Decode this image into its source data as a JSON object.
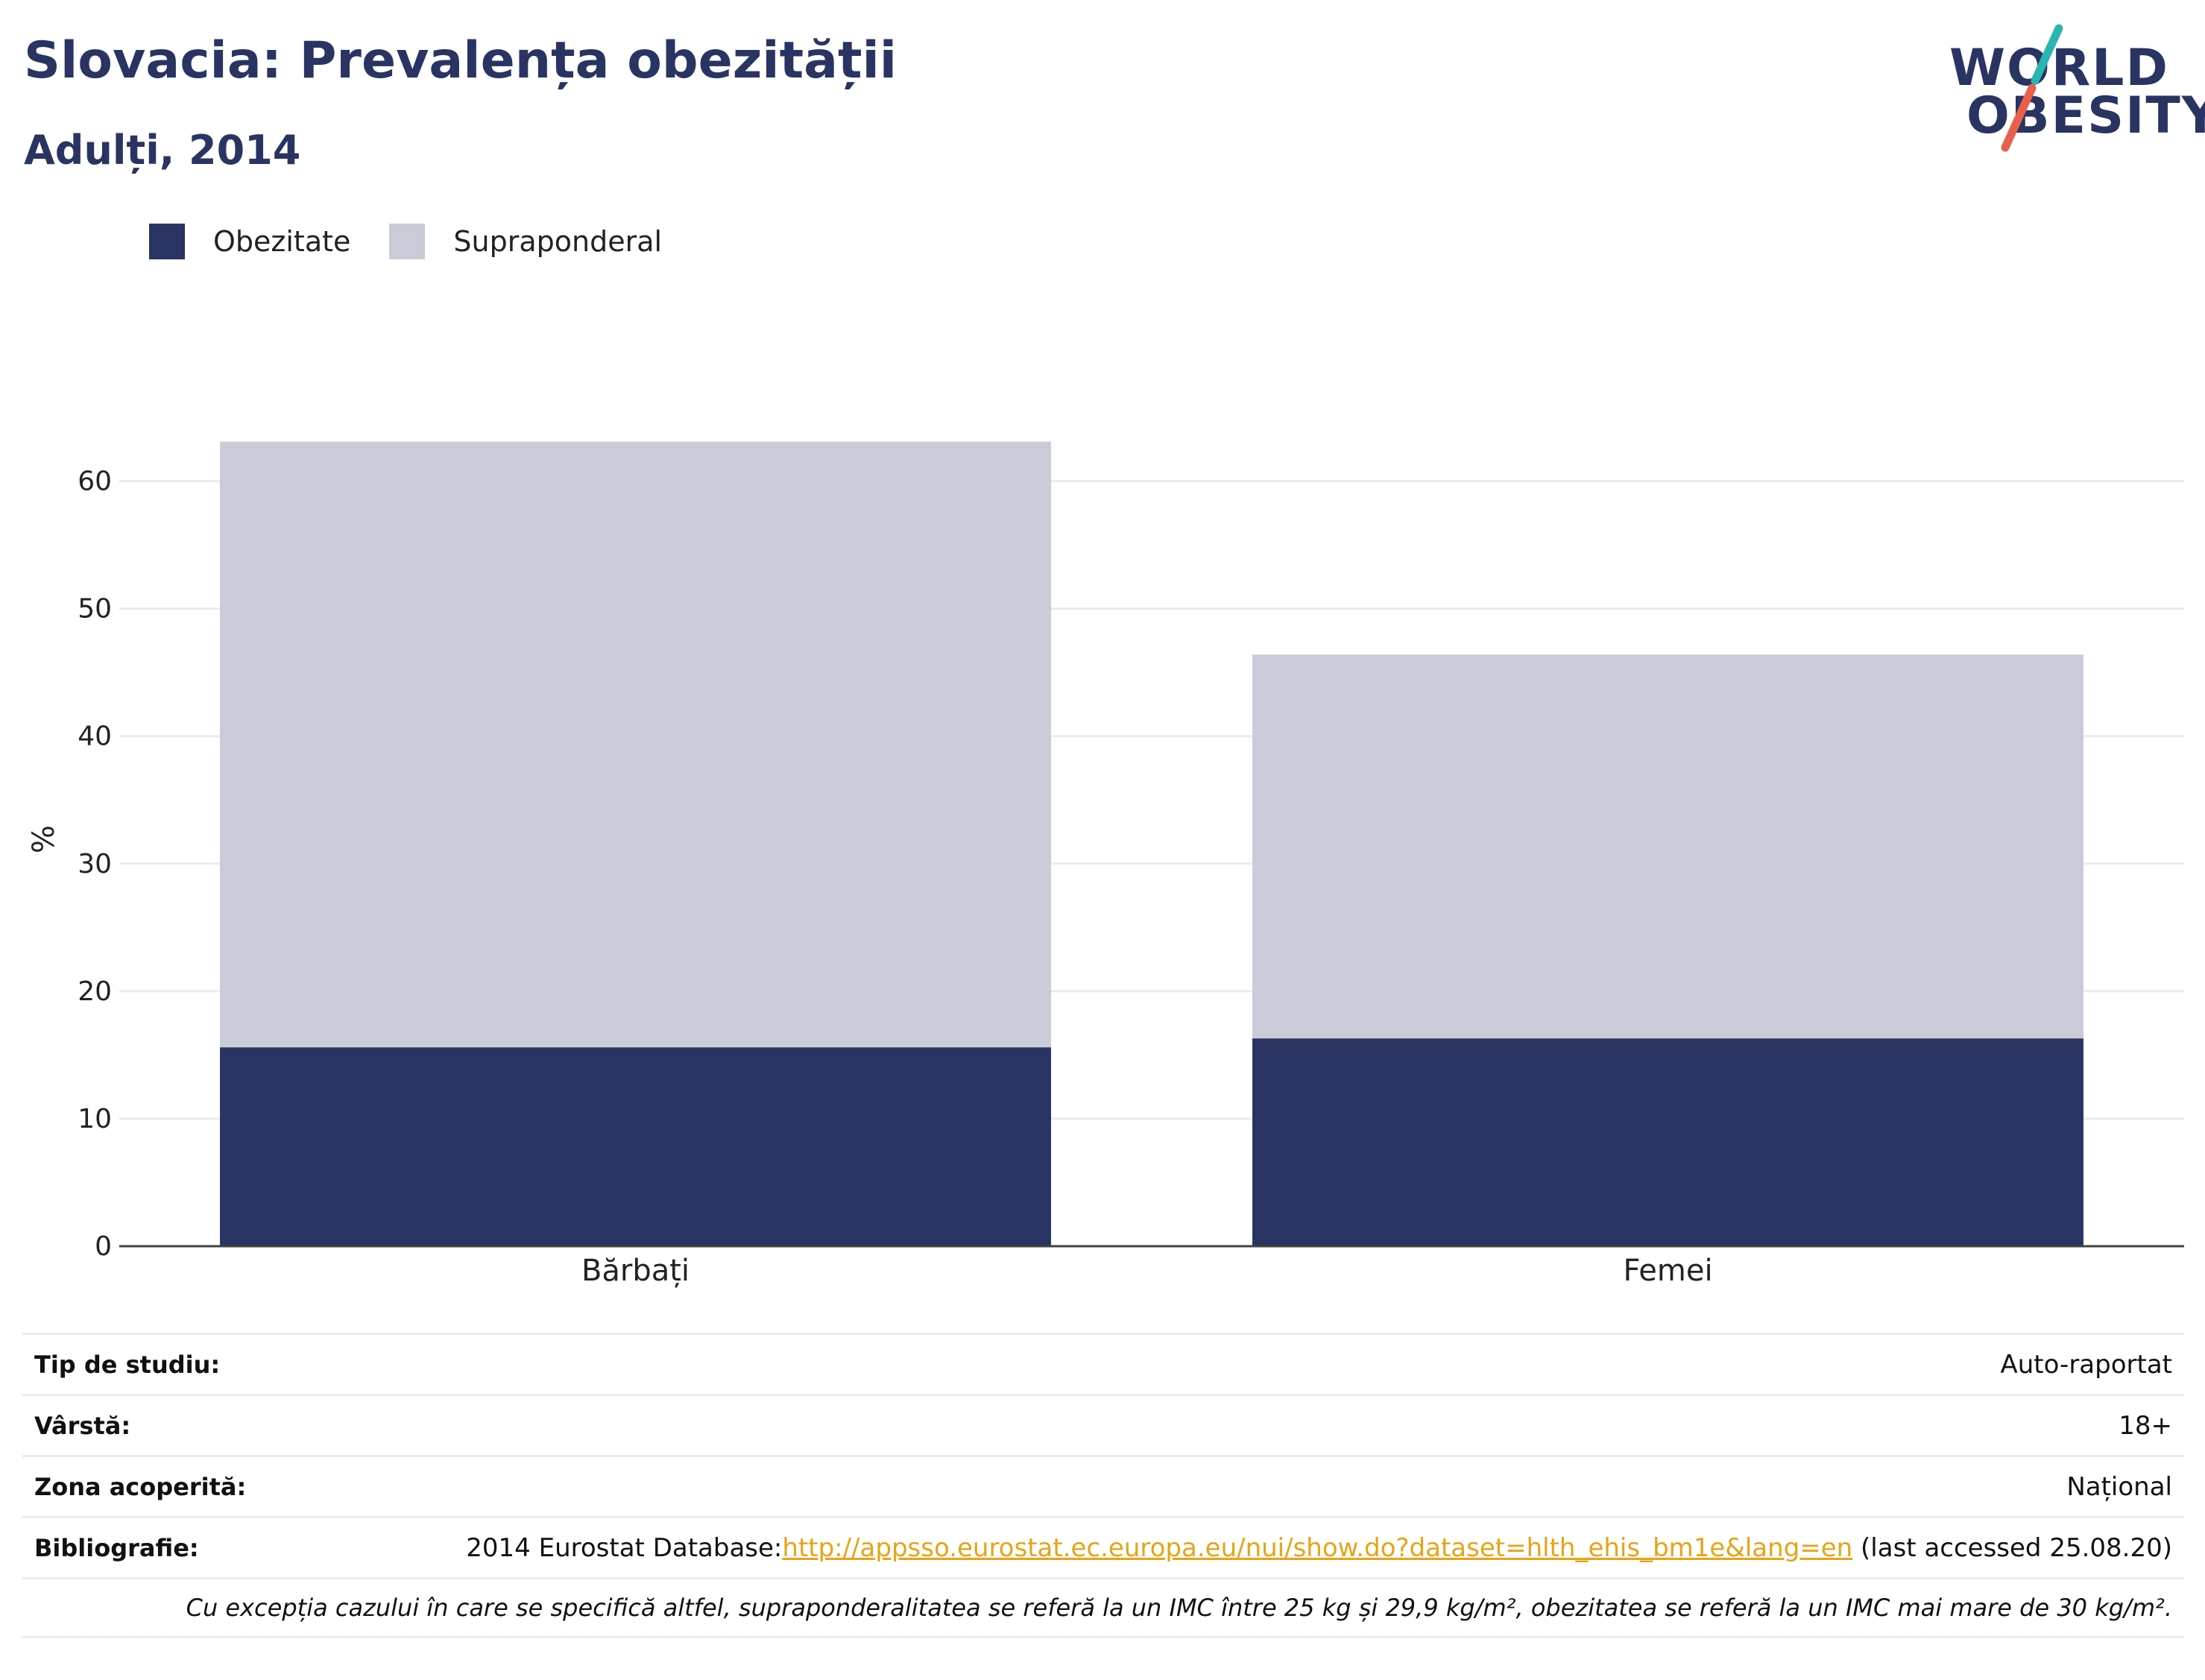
{
  "header": {
    "title": "Slovacia: Prevalența obezității",
    "subtitle": "Adulți, 2014"
  },
  "logo": {
    "line1": "WORLD",
    "line2": "OBESITY",
    "accent_colors": [
      "#2bb5b0",
      "#e8604c"
    ]
  },
  "legend": [
    {
      "label": "Obezitate",
      "color": "#293462"
    },
    {
      "label": "Supraponderal",
      "color": "#c9ccd8"
    }
  ],
  "chart_data": {
    "type": "bar",
    "stacked": true,
    "categories": [
      "Bărbați",
      "Femei"
    ],
    "series": [
      {
        "name": "Obezitate",
        "values": [
          15.6,
          16.3
        ],
        "color": "#293462"
      },
      {
        "name": "Supraponderal",
        "values": [
          47.5,
          30.1
        ],
        "color": "#c9ccd8"
      }
    ],
    "ylabel": "%",
    "ylim": [
      0,
      65
    ],
    "yticks": [
      0,
      10,
      20,
      30,
      40,
      50,
      60
    ],
    "grid": true,
    "legend_position": "top-left"
  },
  "info": {
    "study_type_label": "Tip de studiu:",
    "study_type_value": "Auto-raportat",
    "age_label": "Vârstă:",
    "age_value": "18+",
    "coverage_label": "Zona acoperită:",
    "coverage_value": "Național",
    "bibliography_label": "Bibliografie:",
    "bibliography_prefix": "2014 Eurostat Database:",
    "bibliography_link": "http://appsso.eurostat.ec.europa.eu/nui/show.do?dataset=hlth_ehis_bm1e&lang=en",
    "bibliography_suffix": " (last accessed 25.08.20)",
    "note": "Cu excepția cazului în care se specifică altfel, supraponderalitatea se referă la un IMC între 25 kg și 29,9 kg/m², obezitatea se referă la un IMC mai mare de 30 kg/m²."
  }
}
